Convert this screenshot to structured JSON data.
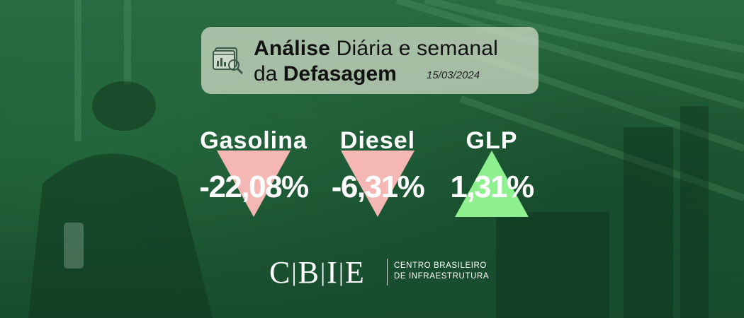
{
  "header": {
    "title_bold": "Análise",
    "title_rest": "Diária e semanal",
    "subtitle_prefix": "da",
    "subtitle_bold": "Defasagem",
    "date": "15/03/2024",
    "icon": "analysis-chart-icon"
  },
  "indicators": [
    {
      "name": "Gasolina",
      "value": "-22,08%",
      "direction": "down",
      "color": "#f4b7b3"
    },
    {
      "name": "Diesel",
      "value": "-6,31%",
      "direction": "down",
      "color": "#f4b7b3"
    },
    {
      "name": "GLP",
      "value": "1,31%",
      "direction": "up",
      "color": "#8ef08e"
    }
  ],
  "brand": {
    "logo": "CBIE",
    "name_line1": "CENTRO BRASILEIRO",
    "name_line2": "DE INFRAESTRUTURA"
  },
  "colors": {
    "background": "#1f5a33",
    "card": "#d7e1cd",
    "down_arrow": "#f4b7b3",
    "up_arrow": "#8ef08e"
  }
}
